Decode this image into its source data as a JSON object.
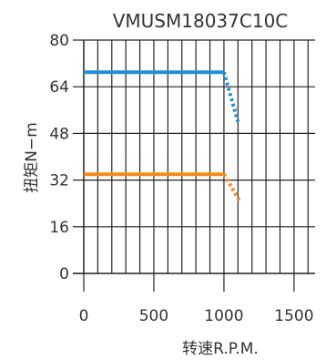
{
  "chart_data": {
    "type": "line",
    "title": "VMUSM18037C10C",
    "xlabel": "转速R.P.M.",
    "ylabel": "扭矩N−m",
    "xlim": [
      0,
      1650
    ],
    "ylim": [
      0,
      80
    ],
    "x_ticks": [
      0,
      500,
      1000,
      1500
    ],
    "x_tick_labels": [
      "0",
      "500",
      "1000",
      "1500"
    ],
    "y_ticks": [
      0,
      16,
      32,
      48,
      64,
      80
    ],
    "y_tick_labels": [
      "0",
      "16",
      "32",
      "48",
      "64",
      "80"
    ],
    "x_grid_step": 100,
    "y_grid_step": 16,
    "grid": true,
    "series": [
      {
        "color": "#1f8fd6",
        "solid": {
          "x": [
            0,
            1000
          ],
          "y": [
            69,
            69
          ]
        },
        "dotted": {
          "x": [
            1000,
            1100
          ],
          "y": [
            69,
            52
          ]
        }
      },
      {
        "color": "#f28c1a",
        "solid": {
          "x": [
            0,
            1000
          ],
          "y": [
            34,
            34
          ]
        },
        "dotted": {
          "x": [
            1000,
            1110
          ],
          "y": [
            34,
            25
          ]
        }
      }
    ]
  }
}
